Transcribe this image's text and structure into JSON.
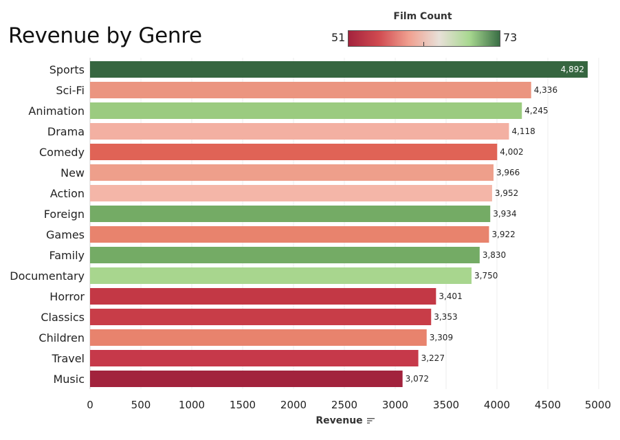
{
  "chart_data": {
    "type": "bar",
    "orientation": "horizontal",
    "title": "Revenue by Genre",
    "xlabel": "Revenue",
    "ylabel": "",
    "xlim": [
      0,
      5000
    ],
    "xticks": [
      0,
      500,
      1000,
      1500,
      2000,
      2500,
      3000,
      3500,
      4000,
      4500,
      5000
    ],
    "grid": "vertical",
    "color_legend": {
      "title": "Film Count",
      "min": 51,
      "max": 73,
      "placement": "top-right",
      "colors": [
        "#a4233d",
        "#d04a50",
        "#f0a090",
        "#e8e0d8",
        "#a8d890",
        "#3a6e45"
      ]
    },
    "categories": [
      "Sports",
      "Sci-Fi",
      "Animation",
      "Drama",
      "Comedy",
      "New",
      "Action",
      "Foreign",
      "Games",
      "Family",
      "Documentary",
      "Horror",
      "Classics",
      "Children",
      "Travel",
      "Music"
    ],
    "values": [
      4892,
      4336,
      4245,
      4118,
      4002,
      3966,
      3952,
      3934,
      3922,
      3830,
      3750,
      3401,
      3353,
      3309,
      3227,
      3072
    ],
    "value_labels": [
      "4,892",
      "4,336",
      "4,245",
      "4,118",
      "4,002",
      "3,966",
      "3,952",
      "3,934",
      "3,922",
      "3,830",
      "3,750",
      "3,401",
      "3,353",
      "3,309",
      "3,227",
      "3,072"
    ],
    "bar_colors": [
      "#366640",
      "#eb9580",
      "#9bcb80",
      "#f3b0a2",
      "#e06356",
      "#ee9f8b",
      "#f4b6a8",
      "#74ab65",
      "#e8836d",
      "#74ab65",
      "#a8d68e",
      "#c33845",
      "#c83d48",
      "#e8836d",
      "#c6394a",
      "#a2233d"
    ]
  },
  "sort_icon": "sort-descending-icon"
}
